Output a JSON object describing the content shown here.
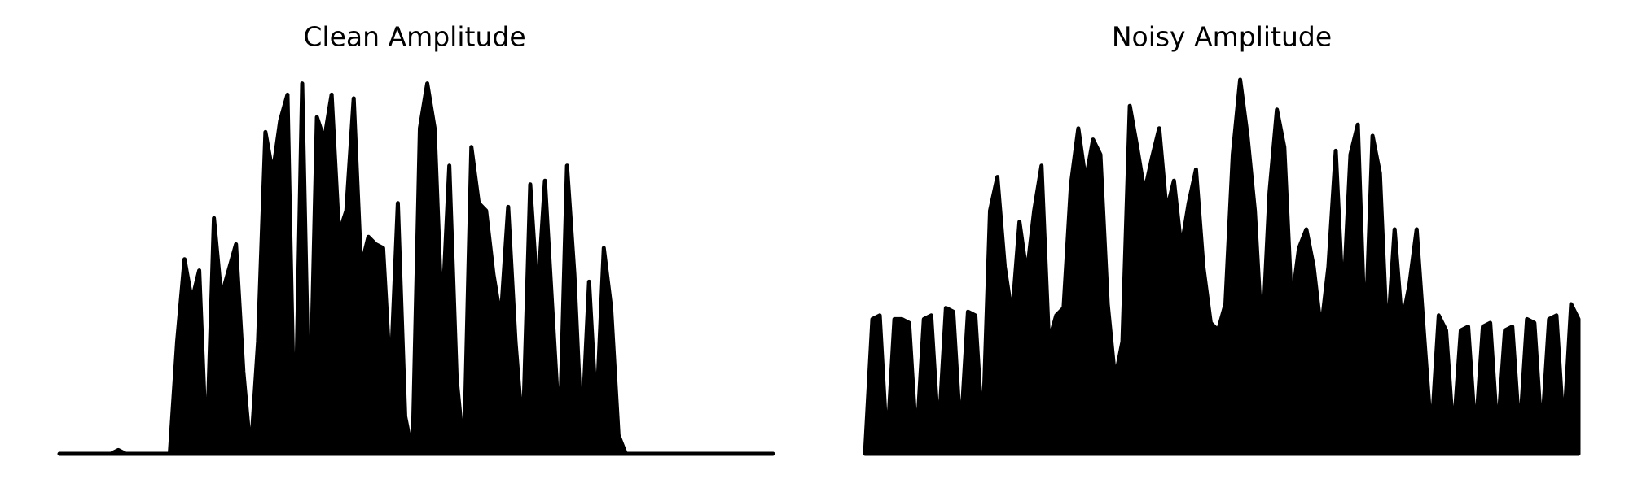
{
  "chart_data": [
    {
      "type": "line",
      "title": "Clean Amplitude",
      "color": "#000000",
      "ylim": [
        0,
        1
      ],
      "values": [
        0,
        0,
        0,
        0,
        0,
        0,
        0,
        0,
        0.01,
        0,
        0,
        0,
        0,
        0,
        0,
        0,
        0.3,
        0.52,
        0.41,
        0.49,
        0,
        0.63,
        0.42,
        0.49,
        0.56,
        0.22,
        0,
        0.3,
        0.86,
        0.75,
        0.89,
        0.96,
        0,
        0.99,
        0.05,
        0.9,
        0.84,
        0.96,
        0.59,
        0.65,
        0.95,
        0.5,
        0.58,
        0.56,
        0.55,
        0.2,
        0.67,
        0.1,
        0,
        0.87,
        0.99,
        0.87,
        0.36,
        0.77,
        0.2,
        0,
        0.82,
        0.67,
        0.65,
        0.48,
        0.36,
        0.66,
        0.3,
        0.05,
        0.72,
        0.42,
        0.73,
        0.39,
        0.05,
        0.77,
        0.48,
        0.05,
        0.46,
        0.11,
        0.55,
        0.39,
        0.05,
        0,
        0,
        0,
        0,
        0,
        0,
        0,
        0,
        0,
        0,
        0,
        0,
        0,
        0,
        0,
        0,
        0,
        0,
        0,
        0,
        0
      ]
    },
    {
      "type": "line",
      "title": "Noisy Amplitude",
      "color": "#000000",
      "ylim": [
        0,
        1
      ],
      "values": [
        0,
        0.36,
        0.37,
        0.02,
        0.36,
        0.36,
        0.35,
        0.03,
        0.36,
        0.37,
        0.05,
        0.39,
        0.38,
        0.05,
        0.38,
        0.37,
        0.05,
        0.65,
        0.74,
        0.5,
        0.37,
        0.62,
        0.48,
        0.65,
        0.77,
        0.3,
        0.37,
        0.39,
        0.72,
        0.87,
        0.73,
        0.84,
        0.8,
        0.4,
        0.2,
        0.3,
        0.93,
        0.82,
        0.7,
        0.79,
        0.87,
        0.65,
        0.73,
        0.55,
        0.67,
        0.76,
        0.5,
        0.35,
        0.33,
        0.4,
        0.8,
        1.0,
        0.85,
        0.65,
        0.3,
        0.7,
        0.92,
        0.82,
        0.4,
        0.55,
        0.6,
        0.5,
        0.33,
        0.5,
        0.81,
        0.4,
        0.8,
        0.88,
        0.3,
        0.85,
        0.75,
        0.3,
        0.6,
        0.35,
        0.45,
        0.6,
        0.32,
        0.05,
        0.37,
        0.33,
        0.05,
        0.33,
        0.34,
        0.05,
        0.34,
        0.35,
        0.05,
        0.33,
        0.34,
        0.05,
        0.36,
        0.35,
        0.05,
        0.36,
        0.37,
        0.06,
        0.4,
        0.36
      ]
    }
  ]
}
